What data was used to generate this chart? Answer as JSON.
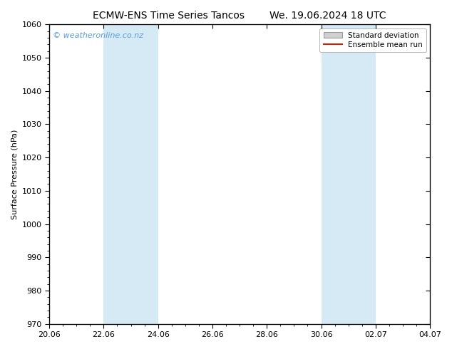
{
  "title_left": "ECMW-ENS Time Series Tancos",
  "title_right": "We. 19.06.2024 18 UTC",
  "ylabel": "Surface Pressure (hPa)",
  "ylim": [
    970,
    1060
  ],
  "yticks": [
    970,
    980,
    990,
    1000,
    1010,
    1020,
    1030,
    1040,
    1050,
    1060
  ],
  "xtick_labels": [
    "20.06",
    "22.06",
    "24.06",
    "26.06",
    "28.06",
    "30.06",
    "02.07",
    "04.07"
  ],
  "xtick_positions": [
    0,
    2,
    4,
    6,
    8,
    10,
    12,
    14
  ],
  "shaded_regions": [
    {
      "x_start": 2,
      "x_end": 4
    },
    {
      "x_start": 10,
      "x_end": 12
    }
  ],
  "shaded_color": "#d6eaf5",
  "background_color": "#ffffff",
  "watermark_text": "© weatheronline.co.nz",
  "watermark_color": "#5599dd",
  "legend_std_label": "Standard deviation",
  "legend_mean_label": "Ensemble mean run",
  "legend_std_facecolor": "#d0d0d0",
  "legend_std_edgecolor": "#999999",
  "legend_mean_color": "#cc2200",
  "title_fontsize": 10,
  "ylabel_fontsize": 8,
  "tick_fontsize": 8,
  "watermark_fontsize": 8,
  "legend_fontsize": 7.5
}
